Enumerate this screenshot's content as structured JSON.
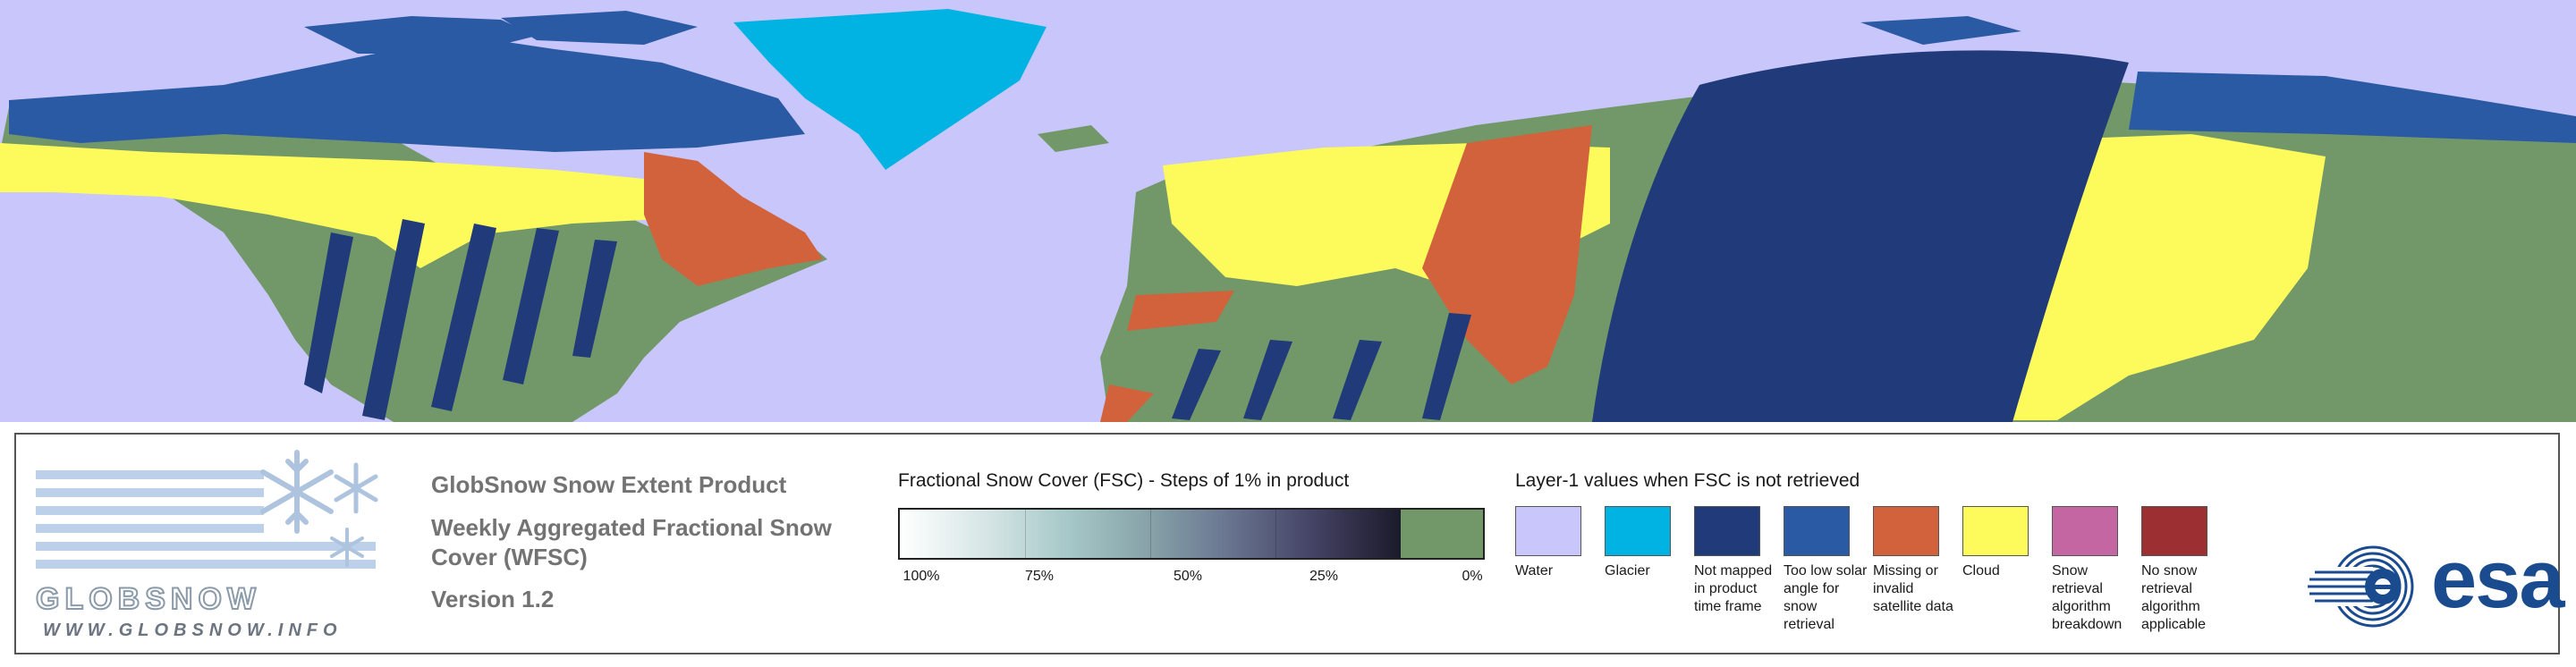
{
  "colors": {
    "background_water": "#c8c6fa",
    "glacier": "#00b3e3",
    "not_mapped": "#203a7a",
    "low_solar": "#2b5aa5",
    "missing": "#d2623c",
    "cloud": "#fdfb5c",
    "breakdown": "#c466a2",
    "not_applicable": "#9b2f31",
    "snow_free": "#729869",
    "logo_blue": "#1b4b8f"
  },
  "logo": {
    "wordmark": "GLOBSNOW",
    "url": "WWW.GLOBSNOW.INFO",
    "icons": [
      "snowflake-icon",
      "snowflake-icon",
      "snowflake-icon"
    ]
  },
  "title": {
    "line1": "GlobSnow Snow Extent Product",
    "line2": "Weekly Aggregated Fractional Snow Cover (WFSC)",
    "version": "Version 1.2"
  },
  "fsc_legend": {
    "heading": "Fractional Snow Cover (FSC) - Steps of 1% in product",
    "ticks": [
      "100%",
      "75%",
      "50%",
      "25%",
      "0%"
    ]
  },
  "layer1_legend": {
    "heading": "Layer-1 values when FSC is not retrieved",
    "items": [
      {
        "label": "Water",
        "color": "#c8c6fa"
      },
      {
        "label": "Glacier",
        "color": "#00b3e3"
      },
      {
        "label": "Not mapped in product time frame",
        "color": "#203a7a"
      },
      {
        "label": "Too low solar angle for snow retrieval",
        "color": "#2b5aa5"
      },
      {
        "label": "Missing or invalid satellite data",
        "color": "#d2623c"
      },
      {
        "label": "Cloud",
        "color": "#fdfb5c"
      },
      {
        "label": "Snow retrieval algorithm breakdown",
        "color": "#c466a2"
      },
      {
        "label": "No snow retrieval algorithm applicable",
        "color": "#9b2f31"
      }
    ]
  },
  "partner_logo": {
    "text": "esa",
    "icon": "esa-emblem-icon"
  }
}
